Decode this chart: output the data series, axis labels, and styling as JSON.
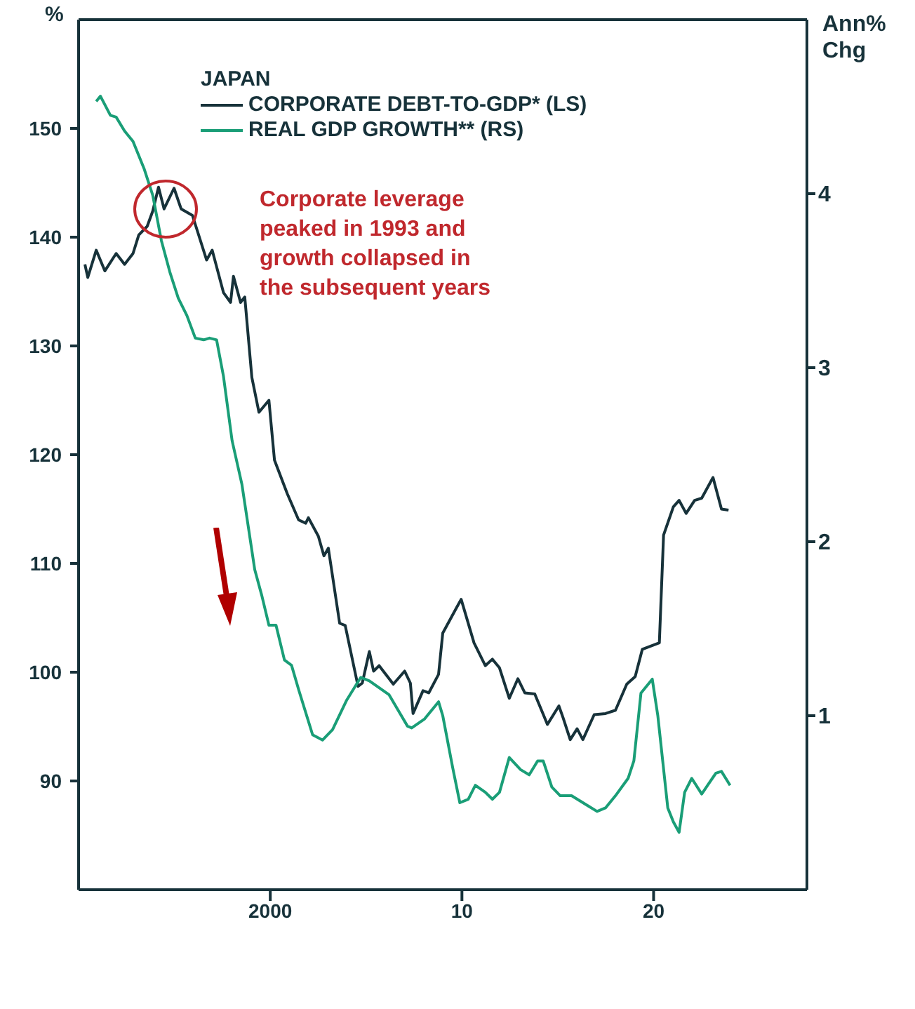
{
  "chart_data": {
    "type": "line",
    "ylabel": "%",
    "y2label": "Ann% Chg",
    "legend_title": "JAPAN",
    "legend": "top left",
    "annotations": [
      "Corporate leverage peaked in 1993 and growth collapsed in the subsequent years"
    ],
    "xlim": [
      1990,
      2028
    ],
    "xticks": [
      2000,
      {
        "value": 2010,
        "label": "10"
      },
      {
        "value": 2020,
        "label": "20"
      }
    ],
    "ylim": [
      80,
      160
    ],
    "yticks": [
      90,
      100,
      110,
      120,
      130,
      140,
      150
    ],
    "y2lim": [
      0,
      5
    ],
    "y2ticks": [
      1,
      2,
      3,
      4
    ],
    "series": [
      {
        "name": "CORPORATE DEBT-TO-GDP* (LS)",
        "color": "#17323a",
        "x": [
          1990.33,
          1990.48,
          1990.92,
          1991.37,
          1991.96,
          1992.4,
          1992.84,
          1993.14,
          1993.58,
          1993.87,
          1994.17,
          1994.46,
          1994.98,
          1995.35,
          1995.94,
          1996.68,
          1996.97,
          1997.56,
          1997.93,
          1998.08,
          1998.45,
          1998.67,
          1999.04,
          1999.41,
          1999.93,
          2000.22,
          2000.89,
          2001.48,
          2001.85,
          2001.99,
          2002.51,
          2002.8,
          2003.03,
          2003.62,
          2003.91,
          2004.58,
          2004.8,
          2005.17,
          2005.39,
          2005.68,
          2006.42,
          2007.01,
          2007.31,
          2007.45,
          2007.97,
          2008.27,
          2008.78,
          2009.0,
          2009.74,
          2009.96,
          2010.63,
          2011.22,
          2011.59,
          2011.96,
          2012.47,
          2012.92,
          2013.28,
          2013.8,
          2014.46,
          2015.06,
          2015.28,
          2015.65,
          2016.01,
          2016.31,
          2016.9,
          2017.49,
          2018.01,
          2018.6,
          2019.04,
          2019.41,
          2020.3,
          2020.52,
          2021.03,
          2021.33,
          2021.7,
          2022.14,
          2022.51,
          2023.1,
          2023.54,
          2023.91
        ],
        "values": [
          137.5,
          136.3,
          138.8,
          136.9,
          138.5,
          137.5,
          138.5,
          140.2,
          141,
          142.4,
          144.6,
          142.6,
          144.5,
          142.6,
          142,
          137.9,
          138.8,
          134.9,
          134,
          136.4,
          134,
          134.5,
          127.1,
          123.9,
          125,
          119.5,
          116.4,
          114,
          113.7,
          114.2,
          112.5,
          110.7,
          111.4,
          104.5,
          104.3,
          98.7,
          99,
          101.9,
          100.1,
          100.6,
          98.9,
          100.1,
          99,
          96.2,
          98.3,
          98.1,
          99.8,
          103.6,
          106,
          106.7,
          102.7,
          100.6,
          101.2,
          100.4,
          97.6,
          99.4,
          98.1,
          98,
          95.2,
          96.9,
          95.8,
          93.8,
          94.8,
          93.8,
          96.1,
          96.2,
          96.5,
          98.9,
          99.6,
          102.1,
          102.7,
          112.6,
          115.2,
          115.8,
          114.6,
          115.8,
          116,
          117.9,
          115,
          114.9
        ]
      },
      {
        "name": "REAL GDP GROWTH** (RS)",
        "color": "#1a9e77",
        "axis": "y2",
        "x": [
          1990.92,
          1991.14,
          1991.66,
          1991.96,
          1992.4,
          1992.84,
          1993.43,
          1993.87,
          1994.32,
          1994.76,
          1995.2,
          1995.65,
          1996.09,
          1996.53,
          1996.83,
          1997.2,
          1997.56,
          1998.01,
          1998.52,
          1999.19,
          1999.56,
          1999.93,
          2000.3,
          2000.74,
          2001.11,
          2001.48,
          2002.21,
          2002.73,
          2003.25,
          2003.99,
          2004.72,
          2005.17,
          2006.2,
          2007.16,
          2007.38,
          2008.04,
          2008.78,
          2009.0,
          2009.52,
          2009.89,
          2010.33,
          2010.7,
          2011.22,
          2011.59,
          2011.96,
          2012.47,
          2013.06,
          2013.51,
          2013.95,
          2014.24,
          2014.69,
          2015.13,
          2015.72,
          2016.61,
          2017.05,
          2017.49,
          2018.01,
          2018.67,
          2018.97,
          2019.34,
          2019.93,
          2020.22,
          2020.74,
          2021.03,
          2021.33,
          2021.62,
          2021.99,
          2022.51,
          2022.88,
          2023.25,
          2023.54,
          2023.99
        ],
        "values": [
          4.53,
          4.56,
          4.45,
          4.44,
          4.36,
          4.3,
          4.14,
          3.99,
          3.73,
          3.55,
          3.4,
          3.3,
          3.17,
          3.16,
          3.17,
          3.16,
          2.95,
          2.58,
          2.33,
          1.84,
          1.69,
          1.52,
          1.52,
          1.32,
          1.29,
          1.15,
          0.89,
          0.86,
          0.92,
          1.09,
          1.22,
          1.2,
          1.12,
          0.94,
          0.93,
          0.98,
          1.08,
          1.0,
          0.7,
          0.5,
          0.52,
          0.6,
          0.56,
          0.52,
          0.56,
          0.76,
          0.69,
          0.66,
          0.74,
          0.74,
          0.59,
          0.54,
          0.54,
          0.48,
          0.45,
          0.47,
          0.54,
          0.64,
          0.74,
          1.13,
          1.21,
          1.0,
          0.47,
          0.39,
          0.33,
          0.56,
          0.64,
          0.55,
          0.61,
          0.67,
          0.68,
          0.6
        ]
      }
    ]
  }
}
